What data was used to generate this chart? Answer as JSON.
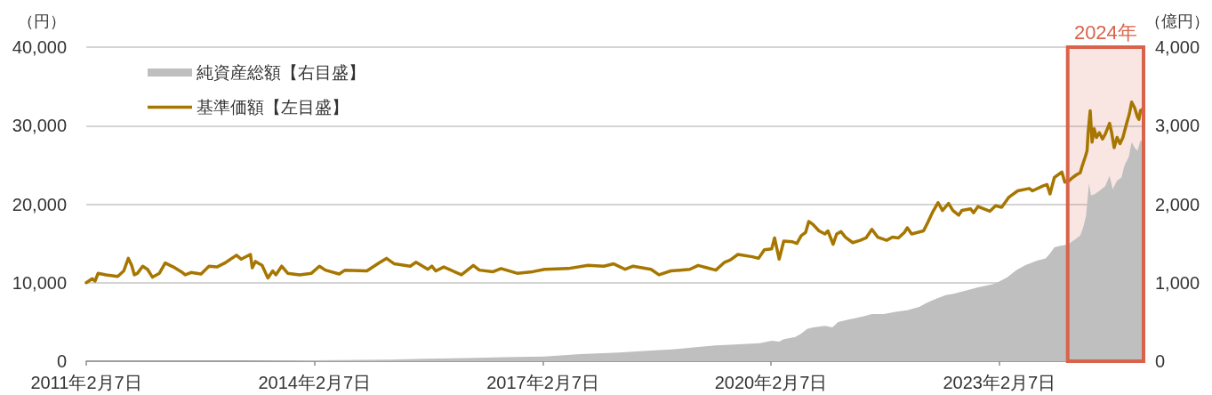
{
  "chart_data": {
    "type": "line",
    "ylabel": "（円）",
    "y2label": "（億円）",
    "xlim": [
      "2011-02-07",
      "2024-12-30"
    ],
    "xticks": [
      {
        "value": "2011-02-07",
        "label": "2011年2月7日"
      },
      {
        "value": "2014-02-07",
        "label": "2014年2月7日"
      },
      {
        "value": "2017-02-07",
        "label": "2017年2月7日"
      },
      {
        "value": "2020-02-07",
        "label": "2020年2月7日"
      },
      {
        "value": "2023-02-07",
        "label": "2023年2月7日"
      }
    ],
    "ylim": [
      0,
      40000
    ],
    "yticks": [
      0,
      {
        "value": 10000,
        "label": "10,000"
      },
      {
        "value": 20000,
        "label": "20,000"
      },
      {
        "value": 30000,
        "label": "30,000"
      },
      {
        "value": 40000,
        "label": "40,000"
      }
    ],
    "y2lim": [
      0,
      4000
    ],
    "y2ticks": [
      0,
      {
        "value": 1000,
        "label": "1,000"
      },
      {
        "value": 2000,
        "label": "2,000"
      },
      {
        "value": 3000,
        "label": "3,000"
      },
      {
        "value": 4000,
        "label": "4,000"
      }
    ],
    "series": [
      {
        "name": "純資産総額【右目盛】",
        "type": "area",
        "color": "#bfbfbf",
        "axis": "y2",
        "x": [
          "2011-02-07",
          "2012-02-07",
          "2013-02-07",
          "2014-02-07",
          "2015-02-07",
          "2015-07-26",
          "2016-02-07",
          "2016-08-07",
          "2017-02-15",
          "2017-08-07",
          "2018-02-07",
          "2018-06-07",
          "2018-10-18",
          "2019-02-22",
          "2019-05-18",
          "2019-07-27",
          "2019-12-16",
          "2020-02-10",
          "2020-03-17",
          "2020-04-08",
          "2020-06-03",
          "2020-07-01",
          "2020-07-29",
          "2020-08-27",
          "2020-10-23",
          "2020-11-27",
          "2020-12-25",
          "2021-02-12",
          "2021-04-23",
          "2021-06-05",
          "2021-08-01",
          "2021-09-27",
          "2021-11-22",
          "2022-01-18",
          "2022-03-01",
          "2022-04-13",
          "2022-05-25",
          "2022-07-06",
          "2022-09-01",
          "2022-10-27",
          "2023-01-06",
          "2023-02-04",
          "2023-03-18",
          "2023-04-29",
          "2023-06-10",
          "2023-08-06",
          "2023-09-17",
          "2023-10-08",
          "2023-10-29",
          "2023-11-26",
          "2023-12-18",
          "2024-01-04",
          "2024-01-25",
          "2024-02-15",
          "2024-03-01",
          "2024-03-15",
          "2024-03-29",
          "2024-04-12",
          "2024-04-22",
          "2024-05-11",
          "2024-06-01",
          "2024-06-29",
          "2024-07-20",
          "2024-08-04",
          "2024-08-25",
          "2024-09-15",
          "2024-09-29",
          "2024-10-20",
          "2024-11-03",
          "2024-11-17",
          "2024-12-01",
          "2024-12-15",
          "2024-12-30"
        ],
        "values": [
          0,
          0,
          0,
          10,
          20,
          30,
          40,
          50,
          60,
          90,
          110,
          130,
          150,
          180,
          200,
          210,
          230,
          260,
          250,
          280,
          310,
          350,
          410,
          430,
          450,
          430,
          500,
          530,
          570,
          600,
          600,
          630,
          650,
          690,
          750,
          800,
          840,
          860,
          900,
          940,
          980,
          1010,
          1070,
          1160,
          1220,
          1280,
          1310,
          1370,
          1450,
          1470,
          1480,
          1490,
          1530,
          1570,
          1600,
          1700,
          1850,
          2260,
          2110,
          2130,
          2170,
          2230,
          2360,
          2190,
          2300,
          2340,
          2490,
          2600,
          2790,
          2720,
          2680,
          2810,
          2790
        ]
      },
      {
        "name": "基準価額【左目盛】",
        "type": "line",
        "color": "#a67600",
        "x": [
          "2011-02-07",
          "2011-03-08",
          "2011-03-21",
          "2011-04-05",
          "2011-05-13",
          "2011-07-08",
          "2011-08-06",
          "2011-08-28",
          "2011-09-13",
          "2011-09-26",
          "2011-10-11",
          "2011-11-05",
          "2011-11-28",
          "2011-12-22",
          "2012-01-24",
          "2012-02-21",
          "2012-03-31",
          "2012-05-08",
          "2012-05-27",
          "2012-06-24",
          "2012-08-11",
          "2012-09-18",
          "2012-10-26",
          "2012-12-03",
          "2013-01-28",
          "2013-02-20",
          "2013-04-05",
          "2013-04-14",
          "2013-04-29",
          "2013-05-31",
          "2013-06-28",
          "2013-07-21",
          "2013-08-05",
          "2013-09-02",
          "2013-10-01",
          "2013-11-27",
          "2014-01-23",
          "2014-03-02",
          "2014-03-31",
          "2014-06-05",
          "2014-07-03",
          "2014-10-16",
          "2014-12-12",
          "2015-01-18",
          "2015-02-25",
          "2015-05-12",
          "2015-06-09",
          "2015-08-05",
          "2015-08-24",
          "2015-09-12",
          "2015-10-20",
          "2016-01-13",
          "2016-03-10",
          "2016-04-08",
          "2016-06-13",
          "2016-07-21",
          "2016-10-06",
          "2016-12-20",
          "2017-02-15",
          "2017-06-08",
          "2017-09-11",
          "2017-11-26",
          "2018-01-13",
          "2018-03-09",
          "2018-04-16",
          "2018-07-11",
          "2018-08-18",
          "2018-10-14",
          "2019-01-13",
          "2019-02-22",
          "2019-04-05",
          "2019-05-18",
          "2019-06-29",
          "2019-07-27",
          "2019-09-01",
          "2019-11-10",
          "2019-12-09",
          "2020-01-06",
          "2020-02-10",
          "2020-02-24",
          "2020-03-17",
          "2020-04-08",
          "2020-05-20",
          "2020-06-10",
          "2020-07-01",
          "2020-07-22",
          "2020-08-06",
          "2020-08-27",
          "2020-09-24",
          "2020-10-23",
          "2020-11-06",
          "2020-12-01",
          "2020-12-18",
          "2021-01-08",
          "2021-01-29",
          "2021-03-05",
          "2021-04-10",
          "2021-05-08",
          "2021-06-05",
          "2021-07-03",
          "2021-08-15",
          "2021-09-12",
          "2021-10-10",
          "2021-11-08",
          "2021-11-22",
          "2021-12-13",
          "2022-02-08",
          "2022-03-01",
          "2022-03-22",
          "2022-04-19",
          "2022-05-10",
          "2022-06-08",
          "2022-06-29",
          "2022-07-27",
          "2022-08-11",
          "2022-09-22",
          "2022-10-06",
          "2022-10-27",
          "2022-12-23",
          "2023-01-20",
          "2023-02-18",
          "2023-03-25",
          "2023-05-06",
          "2023-07-01",
          "2023-07-16",
          "2023-09-03",
          "2023-09-24",
          "2023-10-08",
          "2023-10-29",
          "2023-12-04",
          "2023-12-18",
          "2024-01-04",
          "2024-01-25",
          "2024-02-15",
          "2024-03-01",
          "2024-03-11",
          "2024-03-25",
          "2024-04-03",
          "2024-04-08",
          "2024-04-18",
          "2024-04-27",
          "2024-05-07",
          "2024-05-18",
          "2024-06-01",
          "2024-06-16",
          "2024-06-29",
          "2024-07-20",
          "2024-07-30",
          "2024-08-11",
          "2024-08-25",
          "2024-09-08",
          "2024-09-22",
          "2024-10-09",
          "2024-10-23",
          "2024-11-03",
          "2024-11-17",
          "2024-12-01",
          "2024-12-08",
          "2024-12-15",
          "2024-12-30"
        ],
        "values": [
          10000,
          10500,
          10200,
          11200,
          11000,
          10800,
          11500,
          13100,
          12200,
          11000,
          11200,
          12100,
          11700,
          10700,
          11200,
          12500,
          12000,
          11400,
          11000,
          11300,
          11100,
          12100,
          12000,
          12500,
          13500,
          13000,
          13600,
          11900,
          12700,
          12200,
          10600,
          11500,
          11000,
          12100,
          11200,
          11000,
          11200,
          12100,
          11600,
          11100,
          11600,
          11500,
          12500,
          13100,
          12400,
          12100,
          12600,
          11700,
          12100,
          11500,
          12000,
          11000,
          12200,
          11600,
          11400,
          11800,
          11200,
          11400,
          11700,
          11800,
          12200,
          12100,
          12400,
          11700,
          12100,
          11700,
          11000,
          11500,
          11700,
          12200,
          11900,
          11600,
          12600,
          12900,
          13600,
          13300,
          13100,
          14200,
          14300,
          15700,
          13000,
          15300,
          15200,
          15000,
          16000,
          16400,
          17800,
          17400,
          16600,
          16200,
          16600,
          14900,
          16200,
          16500,
          15800,
          15100,
          15400,
          15700,
          16800,
          15800,
          15400,
          15800,
          15700,
          16400,
          17000,
          16200,
          16600,
          17700,
          18900,
          20200,
          19200,
          20100,
          19200,
          18600,
          19200,
          19400,
          18900,
          19700,
          19100,
          19800,
          19600,
          20900,
          21700,
          22000,
          21700,
          22300,
          22500,
          21300,
          23400,
          24100,
          22800,
          22900,
          23400,
          23800,
          24000,
          24900,
          26000,
          26800,
          29100,
          31900,
          27900,
          29600,
          28500,
          29100,
          28300,
          28900,
          30300,
          29100,
          27200,
          28500,
          27700,
          28500,
          30200,
          31500,
          33000,
          32300,
          31100,
          30800,
          31900,
          32200
        ]
      }
    ],
    "bands": [
      {
        "axis": "x",
        "from": "2024-01-01",
        "to": "2024-12-30",
        "label": "2024年",
        "color": "#d9634a"
      }
    ],
    "grid": "y",
    "legend": "top left"
  }
}
